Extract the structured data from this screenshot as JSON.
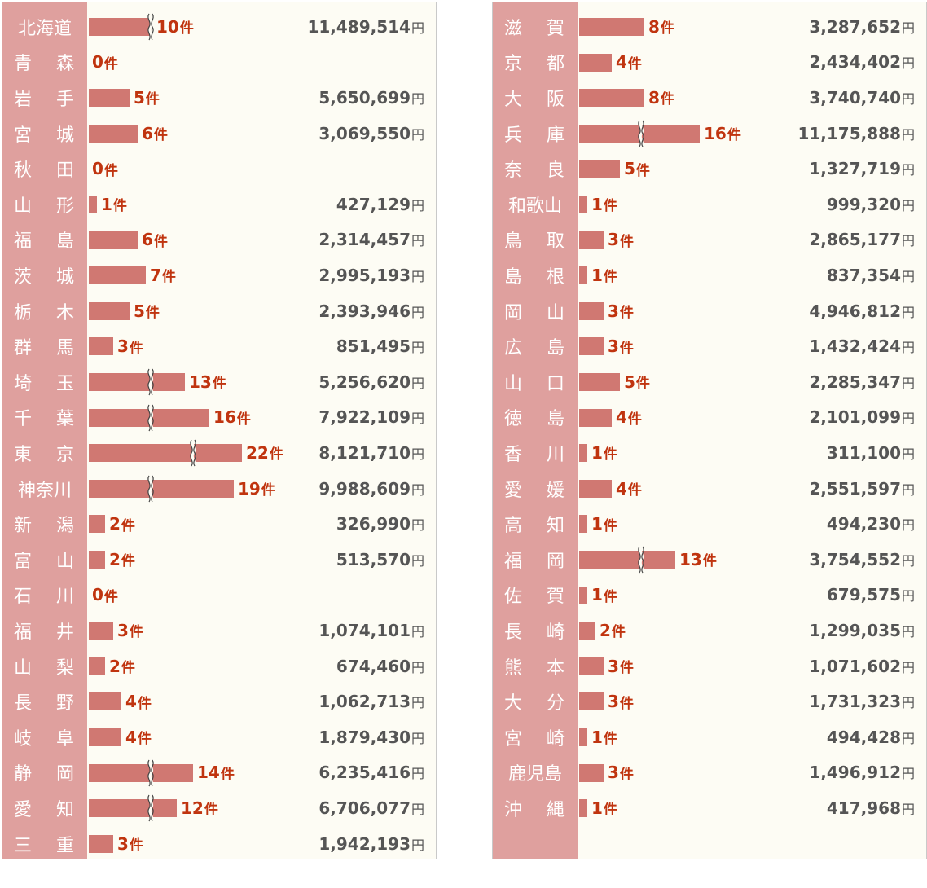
{
  "chart_data": [
    {
      "type": "bar",
      "orientation": "horizontal",
      "count_unit": "件",
      "amount_unit": "円",
      "rows": [
        {
          "pref": "北海道",
          "count": 10,
          "amount": "11,489,514",
          "broken": true
        },
        {
          "pref": "青　森",
          "count": 0,
          "amount": ""
        },
        {
          "pref": "岩　手",
          "count": 5,
          "amount": "5,650,699"
        },
        {
          "pref": "宮　城",
          "count": 6,
          "amount": "3,069,550"
        },
        {
          "pref": "秋　田",
          "count": 0,
          "amount": ""
        },
        {
          "pref": "山　形",
          "count": 1,
          "amount": "427,129"
        },
        {
          "pref": "福　島",
          "count": 6,
          "amount": "2,314,457"
        },
        {
          "pref": "茨　城",
          "count": 7,
          "amount": "2,995,193"
        },
        {
          "pref": "栃　木",
          "count": 5,
          "amount": "2,393,946"
        },
        {
          "pref": "群　馬",
          "count": 3,
          "amount": "851,495"
        },
        {
          "pref": "埼　玉",
          "count": 13,
          "amount": "5,256,620",
          "broken": true
        },
        {
          "pref": "千　葉",
          "count": 16,
          "amount": "7,922,109",
          "broken": true
        },
        {
          "pref": "東　京",
          "count": 22,
          "amount": "8,121,710",
          "broken": true
        },
        {
          "pref": "神奈川",
          "count": 19,
          "amount": "9,988,609",
          "broken": true
        },
        {
          "pref": "新　潟",
          "count": 2,
          "amount": "326,990"
        },
        {
          "pref": "富　山",
          "count": 2,
          "amount": "513,570"
        },
        {
          "pref": "石　川",
          "count": 0,
          "amount": ""
        },
        {
          "pref": "福　井",
          "count": 3,
          "amount": "1,074,101"
        },
        {
          "pref": "山　梨",
          "count": 2,
          "amount": "674,460"
        },
        {
          "pref": "長　野",
          "count": 4,
          "amount": "1,062,713"
        },
        {
          "pref": "岐　阜",
          "count": 4,
          "amount": "1,879,430"
        },
        {
          "pref": "静　岡",
          "count": 14,
          "amount": "6,235,416",
          "broken": true
        },
        {
          "pref": "愛　知",
          "count": 12,
          "amount": "6,706,077",
          "broken": true
        },
        {
          "pref": "三　重",
          "count": 3,
          "amount": "1,942,193"
        }
      ]
    },
    {
      "type": "bar",
      "orientation": "horizontal",
      "count_unit": "件",
      "amount_unit": "円",
      "rows": [
        {
          "pref": "滋　賀",
          "count": 8,
          "amount": "3,287,652"
        },
        {
          "pref": "京　都",
          "count": 4,
          "amount": "2,434,402"
        },
        {
          "pref": "大　阪",
          "count": 8,
          "amount": "3,740,740"
        },
        {
          "pref": "兵　庫",
          "count": 16,
          "amount": "11,175,888",
          "broken": true
        },
        {
          "pref": "奈　良",
          "count": 5,
          "amount": "1,327,719"
        },
        {
          "pref": "和歌山",
          "count": 1,
          "amount": "999,320"
        },
        {
          "pref": "鳥　取",
          "count": 3,
          "amount": "2,865,177"
        },
        {
          "pref": "島　根",
          "count": 1,
          "amount": "837,354"
        },
        {
          "pref": "岡　山",
          "count": 3,
          "amount": "4,946,812"
        },
        {
          "pref": "広　島",
          "count": 3,
          "amount": "1,432,424"
        },
        {
          "pref": "山　口",
          "count": 5,
          "amount": "2,285,347"
        },
        {
          "pref": "徳　島",
          "count": 4,
          "amount": "2,101,099"
        },
        {
          "pref": "香　川",
          "count": 1,
          "amount": "311,100"
        },
        {
          "pref": "愛　媛",
          "count": 4,
          "amount": "2,551,597"
        },
        {
          "pref": "高　知",
          "count": 1,
          "amount": "494,230"
        },
        {
          "pref": "福　岡",
          "count": 13,
          "amount": "3,754,552",
          "broken": true
        },
        {
          "pref": "佐　賀",
          "count": 1,
          "amount": "679,575"
        },
        {
          "pref": "長　崎",
          "count": 2,
          "amount": "1,299,035"
        },
        {
          "pref": "熊　本",
          "count": 3,
          "amount": "1,071,602"
        },
        {
          "pref": "大　分",
          "count": 3,
          "amount": "1,731,323"
        },
        {
          "pref": "宮　崎",
          "count": 1,
          "amount": "494,428"
        },
        {
          "pref": "鹿児島",
          "count": 3,
          "amount": "1,496,912"
        },
        {
          "pref": "沖　縄",
          "count": 1,
          "amount": "417,968"
        }
      ]
    }
  ],
  "colors": {
    "label_bg": "#dfa09e",
    "bar": "#d07872",
    "count_text": "#c0340f",
    "amount_text": "#555555",
    "panel_bg": "#fdfcf4"
  }
}
